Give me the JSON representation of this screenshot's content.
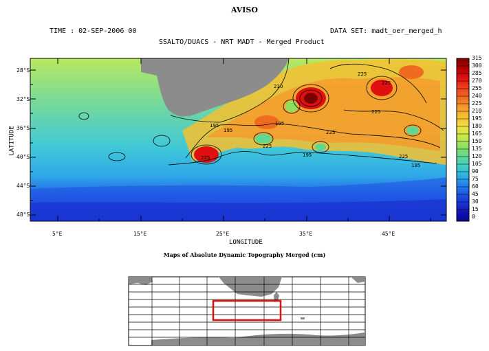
{
  "title": "AVISO",
  "time_label": "TIME : 02-SEP-2006 00",
  "dataset_label": "DATA SET: madt_oer_merged_h",
  "subtitle": "SSALTO/DUACS - NRT MADT - Merged Product",
  "xlabel": "LONGITUDE",
  "ylabel": "LATITUDE",
  "caption": "Maps of Absolute Dynamic Topography Merged (cm)",
  "lat_ticks": [
    "28°S",
    "32°S",
    "36°S",
    "40°S",
    "44°S",
    "48°S"
  ],
  "lon_ticks": [
    "5°E",
    "15°E",
    "25°E",
    "35°E",
    "45°E"
  ],
  "colorbar": {
    "labels": [
      "315",
      "300",
      "285",
      "270",
      "255",
      "240",
      "225",
      "210",
      "195",
      "180",
      "165",
      "150",
      "135",
      "120",
      "105",
      "90",
      "75",
      "60",
      "45",
      "30",
      "15",
      "0"
    ],
    "stops": [
      "#7a0000",
      "#b40000",
      "#e01010",
      "#f04020",
      "#f06a20",
      "#f59a2a",
      "#f7c030",
      "#f0e040",
      "#c8e84a",
      "#90e060",
      "#60d890",
      "#40d0c0",
      "#30b0e0",
      "#2080f0",
      "#2050e0",
      "#1830d0",
      "#1010b0",
      "#0a0890"
    ]
  },
  "contour_labels": [
    "210",
    "225",
    "225",
    "195",
    "195",
    "225",
    "225",
    "225",
    "195",
    "195",
    "195",
    "225",
    "225"
  ],
  "inset": {
    "highlight_color": "#e01010"
  }
}
